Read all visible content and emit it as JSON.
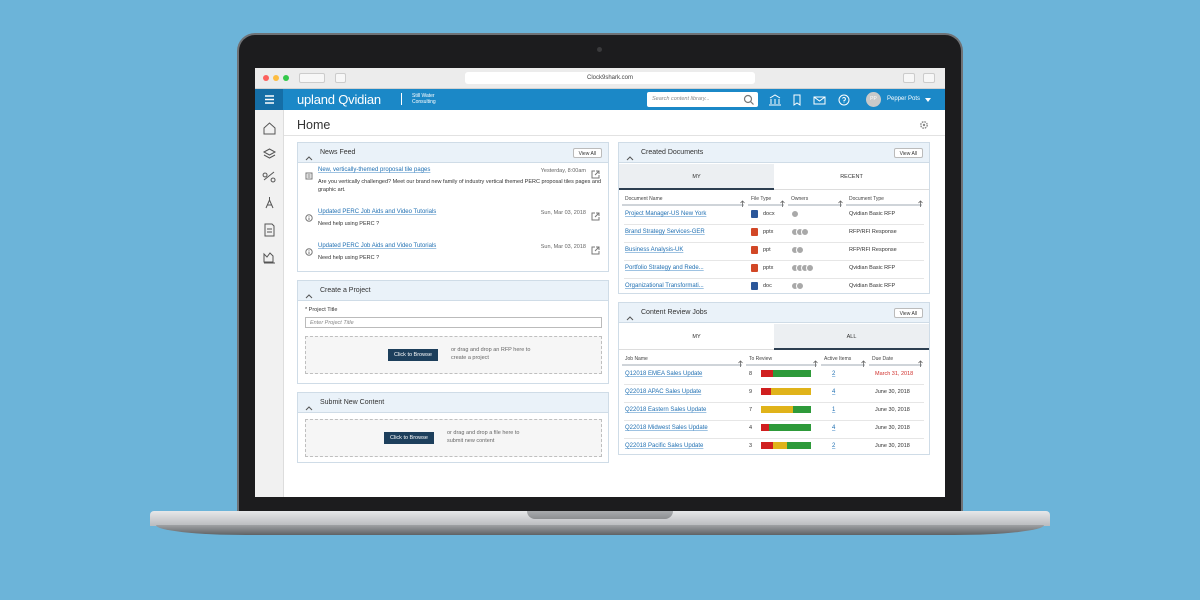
{
  "browser": {
    "url": "Clock9shark.com"
  },
  "header": {
    "brand": "upland Qvidian",
    "partner_line1": "Still Water",
    "partner_line2": "Consulting",
    "search_placeholder": "Search content library...",
    "user_initials": "PP",
    "user_name": "Pepper Pots"
  },
  "page": {
    "title": "Home"
  },
  "news_feed": {
    "title": "News Feed",
    "view_all": "View All",
    "items": [
      {
        "title": "New, vertically-themed proposal tile pages",
        "date": "Yesterday, 8:00am",
        "text": "Are you vertically challenged? Meet our brand new family of industry vertical themed PERC proposal tiles pages and graphic art."
      },
      {
        "title": "Updated PERC Job Aids and Video Tutorials",
        "date": "Sun, Mar 03, 2018",
        "text": "Need help using PERC ?"
      },
      {
        "title": "Updated PERC Job Aids and Video Tutorials",
        "date": "Sun, Mar 03, 2018",
        "text": "Need help using PERC ?"
      }
    ]
  },
  "create_project": {
    "title": "Create a Project",
    "field_label": "* Project Title",
    "placeholder": "Enter Project Title",
    "button": "Click to Browse",
    "hint": "or drag and drop an RFP here to create a project"
  },
  "submit_content": {
    "title": "Submit New Content",
    "button": "Click to Browse",
    "hint": "or drag and drop a file here to submit new content"
  },
  "created_documents": {
    "title": "Created Documents",
    "view_all": "View All",
    "tabs": [
      "MY",
      "RECENT"
    ],
    "columns": [
      "Document Name",
      "File Type",
      "Owners",
      "Document Type"
    ],
    "rows": [
      [
        "Project Manager-US New York",
        "docx",
        "Qvidian Basic RFP"
      ],
      [
        "Brand Strategy Services-GER",
        "pptx",
        "RFP/RFI Response"
      ],
      [
        "Business Analysis-UK",
        "ppt",
        "RFP/RFI Response"
      ],
      [
        "Portfolio Strategy and Rede...",
        "pptx",
        "Qvidian Basic RFP"
      ],
      [
        "Organizational Transformati...",
        "doc",
        "Qvidian Basic RFP"
      ]
    ]
  },
  "review_jobs": {
    "title": "Content Review Jobs",
    "view_all": "View All",
    "tabs": [
      "MY",
      "ALL"
    ],
    "columns": [
      "Job Name",
      "To Review",
      "Active Items",
      "Due Date"
    ],
    "rows": [
      [
        "Q12018 EMEA Sales Update",
        8,
        2,
        "March 31, 2018"
      ],
      [
        "Q22018 APAC Sales Update",
        9,
        4,
        "June 30, 2018"
      ],
      [
        "Q22018 Eastern Sales Update",
        7,
        1,
        "June 30, 2018"
      ],
      [
        "Q22018 Midwest Sales Update",
        4,
        4,
        "June 30, 2018"
      ],
      [
        "Q22018 Pacific Sales Update",
        3,
        2,
        "June 30, 2018"
      ]
    ]
  }
}
